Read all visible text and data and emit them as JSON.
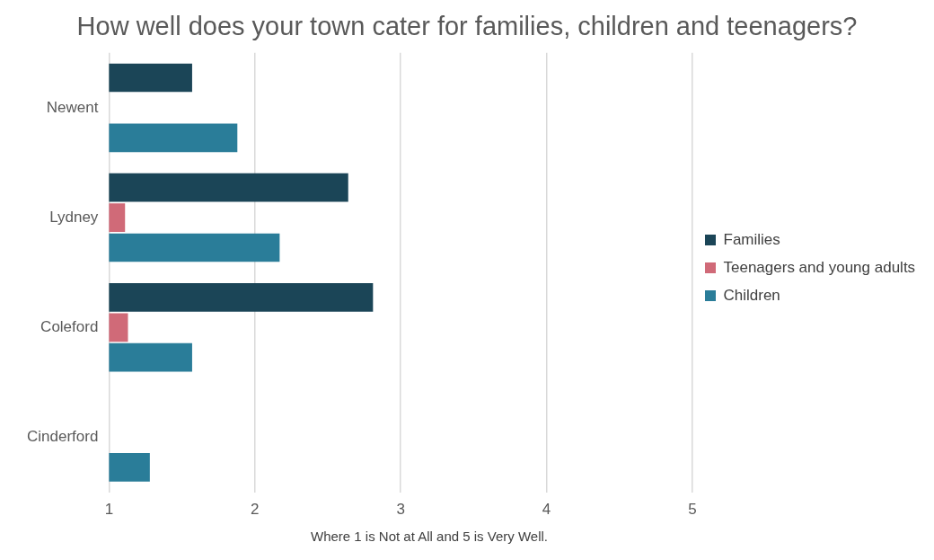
{
  "chart_data": {
    "type": "bar",
    "orientation": "horizontal",
    "title": "How well does your town cater for families, children and teenagers?",
    "categories": [
      "Newent",
      "Lydney",
      "Coleford",
      "Cinderford"
    ],
    "series": [
      {
        "name": "Families",
        "color": "#1b4557",
        "values": [
          1.57,
          2.64,
          2.81,
          null
        ]
      },
      {
        "name": "Teenagers and young adults",
        "color": "#d06a78",
        "values": [
          null,
          1.11,
          1.13,
          null
        ]
      },
      {
        "name": "Children",
        "color": "#2a7d99",
        "values": [
          1.88,
          2.17,
          1.57,
          1.28
        ]
      }
    ],
    "xlim": [
      1,
      5
    ],
    "xticks": [
      1,
      2,
      3,
      4,
      5
    ],
    "grid": "x",
    "legend": "right",
    "annotations": [
      "Where 1 is Not at All and 5 is Very Well."
    ]
  }
}
